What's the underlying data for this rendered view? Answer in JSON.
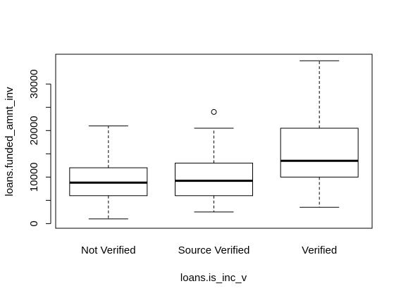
{
  "chart_data": {
    "type": "boxplot",
    "title": "",
    "xlabel": "loans.is_inc_v",
    "ylabel": "loans.funded_amnt_inv",
    "ylim": [
      0,
      35000
    ],
    "yticks": [
      0,
      10000,
      20000,
      30000
    ],
    "categories": [
      "Not Verified",
      "Source Verified",
      "Verified"
    ],
    "boxes": [
      {
        "category": "Not Verified",
        "whisker_low": 1000,
        "q1": 6000,
        "median": 8800,
        "q3": 12000,
        "whisker_high": 21000,
        "outliers": []
      },
      {
        "category": "Source Verified",
        "whisker_low": 2500,
        "q1": 6000,
        "median": 9200,
        "q3": 13000,
        "whisker_high": 20500,
        "outliers": [
          24000
        ]
      },
      {
        "category": "Verified",
        "whisker_low": 3500,
        "q1": 10000,
        "median": 13500,
        "q3": 20500,
        "whisker_high": 35000,
        "outliers": []
      }
    ],
    "grid": false,
    "legend": "none"
  }
}
